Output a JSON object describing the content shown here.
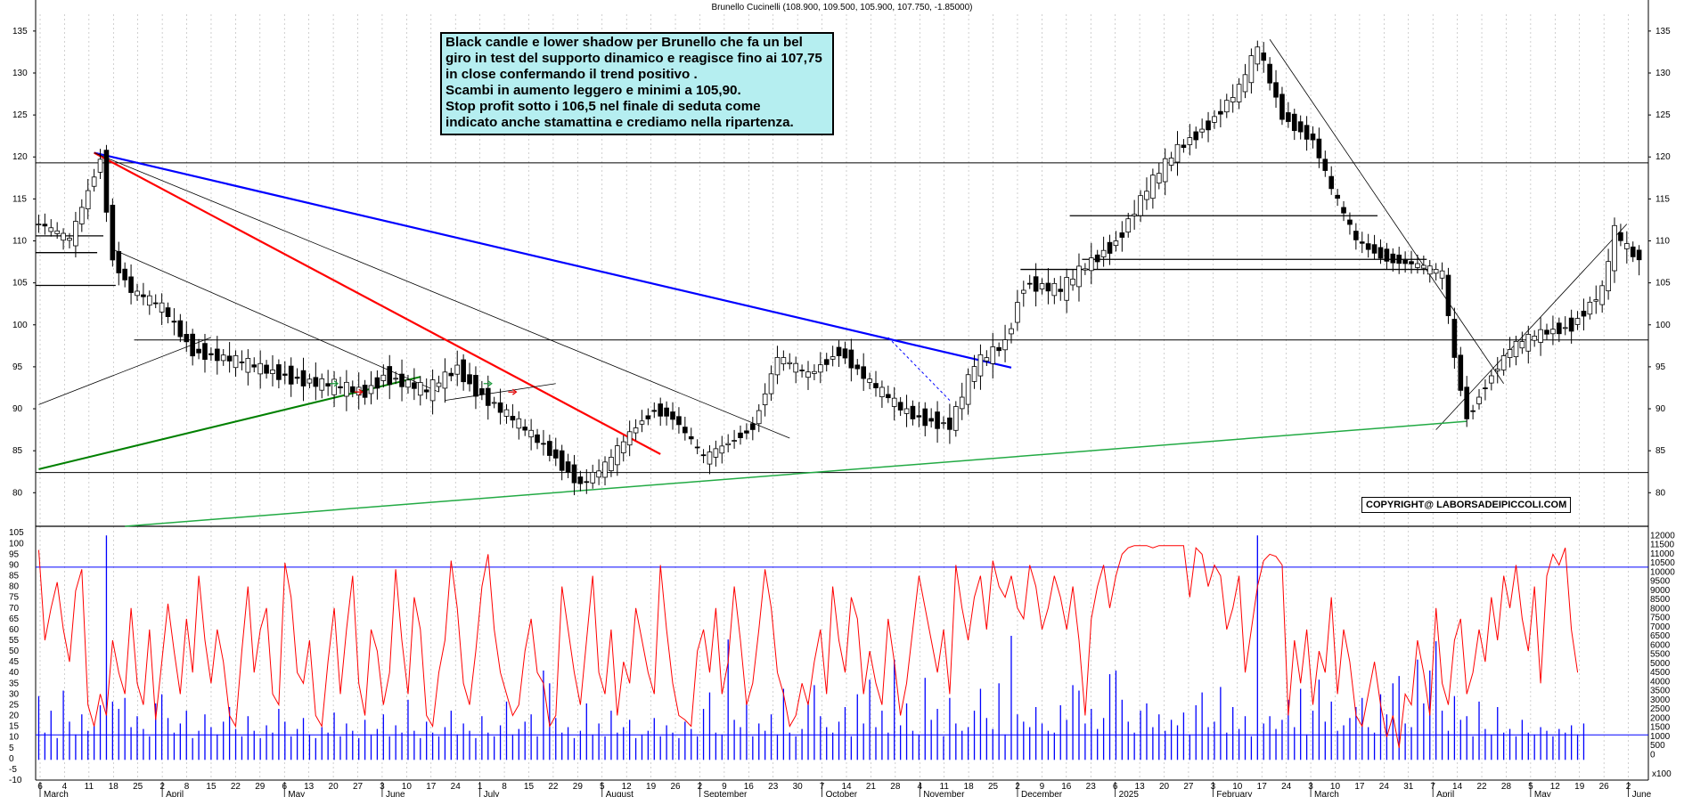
{
  "header": {
    "title": "Brunello Cucinelli (108.900, 109.500, 105.900, 107.750, -1.85000)"
  },
  "note": {
    "lines": [
      "Black candle e lower shadow per Brunello che fa un bel",
      "giro in test del supporto dinamico e reagisce fino ai 107,75",
      "in close confermando il trend positivo .",
      "Scambi in aumento leggero e minimi a 105,90.",
      "Stop profit sotto i 106,5 nel finale di seduta come",
      "indicato anche stamattina e crediamo nella ripartenza."
    ],
    "background": "#b5eef0"
  },
  "copyright": "COPYRIGHT@ LABORSADEIPICCOLI.COM",
  "colors": {
    "candle": "#000000",
    "oscillator": "#ff0000",
    "volume": "#0000ff",
    "trend_blue": "#0000ff",
    "trend_red": "#ff0000",
    "trend_green": "#008000",
    "support_green": "#22aa44",
    "grid": "#b0b0b0"
  },
  "x_axis": {
    "day_labels": [
      "6",
      "4",
      "11",
      "18",
      "25",
      "2",
      "8",
      "15",
      "22",
      "29",
      "6",
      "13",
      "20",
      "27",
      "3",
      "10",
      "17",
      "24",
      "1",
      "8",
      "15",
      "22",
      "29",
      "5",
      "12",
      "19",
      "26",
      "2",
      "9",
      "16",
      "23",
      "30",
      "7",
      "14",
      "21",
      "28",
      "4",
      "11",
      "18",
      "25",
      "2",
      "9",
      "16",
      "23",
      "6",
      "13",
      "20",
      "27",
      "3",
      "10",
      "17",
      "24",
      "3",
      "10",
      "17",
      "24",
      "31",
      "7",
      "14",
      "22",
      "28",
      "5",
      "12",
      "19",
      "26",
      "2"
    ],
    "month_labels": [
      "March",
      "April",
      "May",
      "June",
      "July",
      "August",
      "September",
      "October",
      "November",
      "December",
      "2025",
      "February",
      "March",
      "April",
      "May",
      "June"
    ]
  },
  "chart_data": [
    {
      "type": "candlestick",
      "title": "Brunello Cucinelli (108.900, 109.500, 105.900, 107.750, -1.85000)",
      "last_bar": {
        "open": 108.9,
        "high": 109.5,
        "low": 105.9,
        "close": 107.75,
        "change": -1.85
      },
      "ylim": [
        76,
        137
      ],
      "y_ticks": [
        80,
        85,
        90,
        95,
        100,
        105,
        110,
        115,
        120,
        125,
        130,
        135
      ],
      "close_path": [
        [
          0,
          112
        ],
        [
          5,
          110
        ],
        [
          10,
          120
        ],
        [
          12,
          108
        ],
        [
          15,
          104
        ],
        [
          20,
          102
        ],
        [
          25,
          97
        ],
        [
          30,
          96
        ],
        [
          35,
          95
        ],
        [
          45,
          93
        ],
        [
          53,
          92
        ],
        [
          56,
          94
        ],
        [
          63,
          92
        ],
        [
          68,
          95
        ],
        [
          70,
          93
        ],
        [
          73,
          91
        ],
        [
          78,
          88
        ],
        [
          83,
          85
        ],
        [
          88,
          81
        ],
        [
          92,
          83
        ],
        [
          97,
          88
        ],
        [
          100,
          90
        ],
        [
          103,
          89
        ],
        [
          108,
          84
        ],
        [
          112,
          86
        ],
        [
          116,
          88
        ],
        [
          120,
          96
        ],
        [
          125,
          94
        ],
        [
          130,
          97
        ],
        [
          135,
          93
        ],
        [
          140,
          90
        ],
        [
          143,
          89
        ],
        [
          148,
          88
        ],
        [
          152,
          95
        ],
        [
          157,
          98
        ],
        [
          160,
          105
        ],
        [
          166,
          104
        ],
        [
          170,
          107
        ],
        [
          175,
          110
        ],
        [
          180,
          116
        ],
        [
          185,
          121
        ],
        [
          190,
          124
        ],
        [
          195,
          128
        ],
        [
          198,
          133
        ],
        [
          202,
          125
        ],
        [
          207,
          122
        ],
        [
          210,
          116
        ],
        [
          214,
          110
        ],
        [
          219,
          108
        ],
        [
          224,
          107
        ],
        [
          228,
          106
        ],
        [
          230,
          96
        ],
        [
          232,
          89
        ],
        [
          235,
          93
        ],
        [
          239,
          97
        ],
        [
          244,
          99
        ],
        [
          249,
          100
        ],
        [
          254,
          104
        ],
        [
          256,
          111
        ],
        [
          258,
          109
        ],
        [
          260,
          107.75
        ]
      ],
      "horizontal_lines": [
        {
          "price": 119.3,
          "from": 0,
          "to": 262
        },
        {
          "price": 98.2,
          "from": 16,
          "to": 262
        },
        {
          "price": 82.4,
          "from": 0,
          "to": 262
        },
        {
          "price": 110.6,
          "from": 0,
          "to": 11
        },
        {
          "price": 108.6,
          "from": 0,
          "to": 10
        },
        {
          "price": 104.7,
          "from": 0,
          "to": 13
        },
        {
          "price": 113.0,
          "from": 168,
          "to": 218
        },
        {
          "price": 107.8,
          "from": 170,
          "to": 226
        },
        {
          "price": 106.6,
          "from": 160,
          "to": 227
        }
      ],
      "trendlines": [
        {
          "color": "blue",
          "width": 2.2,
          "points": [
            [
              9,
              120.5
            ],
            [
              158,
              94.9
            ]
          ]
        },
        {
          "color": "red",
          "width": 2.2,
          "points": [
            [
              9,
              120.5
            ],
            [
              101,
              84.6
            ]
          ]
        },
        {
          "color": "black",
          "width": 0.8,
          "points": [
            [
              9,
              120.5
            ],
            [
              122,
              86.5
            ]
          ]
        },
        {
          "color": "black",
          "width": 0.8,
          "points": [
            [
              12,
              109
            ],
            [
              65,
              92
            ]
          ]
        },
        {
          "color": "black",
          "width": 0.8,
          "points": [
            [
              0,
              90.5
            ],
            [
              28,
              98.5
            ]
          ]
        },
        {
          "color": "black",
          "width": 0.8,
          "points": [
            [
              66,
              91
            ],
            [
              84,
              93
            ]
          ]
        },
        {
          "color": "black",
          "width": 0.8,
          "points": [
            [
              200,
              134
            ],
            [
              238,
              93
            ]
          ]
        },
        {
          "color": "black",
          "width": 0.8,
          "points": [
            [
              227,
              87.5
            ],
            [
              258,
              112
            ]
          ]
        },
        {
          "color": "green",
          "width": 2.0,
          "points": [
            [
              0,
              82.8
            ],
            [
              62,
              93.8
            ]
          ]
        },
        {
          "color": "support",
          "width": 1.5,
          "points": [
            [
              14,
              76
            ],
            [
              232,
              88.5
            ]
          ]
        }
      ],
      "dotted_lines": [
        {
          "color": "blue",
          "points": [
            [
              138,
              98.5
            ],
            [
              148,
              91
            ]
          ]
        }
      ],
      "arrows": [
        {
          "color": "green",
          "bar": 48,
          "price": 93
        },
        {
          "color": "green",
          "bar": 73,
          "price": 93
        },
        {
          "color": "red",
          "bar": 52,
          "price": 92
        },
        {
          "color": "red",
          "bar": 77,
          "price": 92
        }
      ]
    },
    {
      "type": "line",
      "series": [
        {
          "color": "red",
          "axis": "left"
        }
      ],
      "ylim": [
        -10,
        108
      ],
      "y_ticks": [
        -10,
        -5,
        0,
        5,
        10,
        15,
        20,
        25,
        30,
        35,
        40,
        45,
        50,
        55,
        60,
        65,
        70,
        75,
        80,
        85,
        90,
        95,
        100,
        105
      ],
      "reference_lines": [
        89,
        11
      ],
      "values": [
        97,
        55,
        70,
        82,
        60,
        45,
        78,
        88,
        25,
        15,
        30,
        20,
        55,
        40,
        30,
        70,
        35,
        25,
        60,
        18,
        45,
        72,
        50,
        30,
        65,
        40,
        85,
        55,
        35,
        60,
        45,
        20,
        15,
        50,
        80,
        40,
        60,
        70,
        30,
        25,
        91,
        75,
        40,
        35,
        55,
        20,
        15,
        45,
        70,
        30,
        60,
        85,
        35,
        20,
        60,
        50,
        25,
        40,
        88,
        55,
        30,
        75,
        60,
        20,
        15,
        40,
        55,
        92,
        70,
        35,
        25,
        50,
        80,
        95,
        60,
        40,
        30,
        20,
        25,
        50,
        65,
        40,
        35,
        15,
        20,
        80,
        60,
        40,
        25,
        55,
        85,
        40,
        30,
        60,
        20,
        45,
        35,
        70,
        55,
        40,
        30,
        90,
        60,
        35,
        20,
        18,
        15,
        50,
        60,
        40,
        70,
        30,
        45,
        80,
        55,
        25,
        35,
        60,
        88,
        70,
        40,
        30,
        15,
        20,
        35,
        25,
        45,
        60,
        30,
        80,
        55,
        40,
        75,
        65,
        30,
        50,
        35,
        25,
        65,
        45,
        20,
        35,
        60,
        85,
        70,
        55,
        40,
        60,
        30,
        90,
        70,
        55,
        75,
        85,
        60,
        92,
        80,
        75,
        85,
        70,
        65,
        90,
        80,
        60,
        70,
        85,
        75,
        60,
        80,
        55,
        20,
        65,
        80,
        90,
        70,
        85,
        95,
        98,
        99,
        99,
        99,
        98,
        99,
        99,
        99,
        99,
        99,
        75,
        98,
        95,
        80,
        90,
        85,
        60,
        70,
        85,
        40,
        60,
        80,
        92,
        95,
        94,
        90,
        20,
        55,
        35,
        60,
        25,
        50,
        40,
        75,
        30,
        60,
        45,
        20,
        15,
        30,
        45,
        25,
        10,
        20,
        5,
        30,
        25,
        55,
        40,
        20,
        70,
        35,
        25,
        55,
        65,
        30,
        40,
        60,
        45,
        75,
        55,
        85,
        70,
        90,
        65,
        50,
        80,
        35,
        85,
        95,
        90,
        98,
        60,
        40
      ],
      "volume_axis": {
        "ylim": [
          -1400,
          12500
        ],
        "ticks": [
          0,
          500,
          1000,
          1500,
          2000,
          2500,
          3000,
          3500,
          4000,
          4500,
          5000,
          5500,
          6000,
          6500,
          7000,
          7500,
          8000,
          8500,
          9000,
          9500,
          10000,
          10500,
          11000,
          11500,
          12000
        ],
        "unit_label": "x100"
      }
    },
    {
      "type": "bar",
      "series": [
        {
          "color": "blue",
          "axis": "right"
        }
      ],
      "unit": "x100",
      "values": [
        3200,
        1200,
        2400,
        900,
        3500,
        1800,
        1100,
        2200,
        1300,
        1600,
        2700,
        12000,
        2900,
        2500,
        3100,
        1500,
        2100,
        1400,
        1000,
        2800,
        3300,
        2000,
        1200,
        1700,
        2400,
        900,
        1300,
        2200,
        1500,
        1100,
        1800,
        2600,
        1400,
        1000,
        2100,
        1300,
        900,
        1600,
        1200,
        2500,
        1800,
        1000,
        1400,
        2000,
        1100,
        900,
        1500,
        1200,
        2300,
        1000,
        1700,
        1300,
        900,
        1900,
        1100,
        1400,
        2200,
        1000,
        1600,
        1200,
        3000,
        1300,
        900,
        1800,
        1200,
        1000,
        1500,
        2400,
        1100,
        1700,
        1300,
        900,
        2100,
        1200,
        1000,
        1600,
        2900,
        1100,
        1400,
        1800,
        2200,
        1000,
        4600,
        3900,
        2000,
        1200,
        1500,
        900,
        1300,
        2800,
        1100,
        1700,
        1000,
        2400,
        1200,
        1500,
        1900,
        900,
        1100,
        1300,
        2000,
        1000,
        1600,
        1200,
        900,
        1800,
        1400,
        1000,
        2500,
        3400,
        1200,
        1100,
        6300,
        1900,
        1500,
        2800,
        1000,
        1700,
        1300,
        2200,
        1100,
        3600,
        1200,
        1000,
        1400,
        2900,
        3800,
        2100,
        1500,
        1200,
        1800,
        2600,
        1000,
        3300,
        1700,
        4100,
        1500,
        2400,
        1200,
        5200,
        1600,
        2800,
        1300,
        1100,
        4200,
        1900,
        2500,
        1000,
        3100,
        1700,
        1300,
        1500,
        2400,
        3600,
        2000,
        1400,
        3900,
        1100,
        6500,
        2200,
        1800,
        1500,
        2600,
        1700,
        1300,
        1200,
        2700,
        1900,
        3800,
        3500,
        1700,
        2500,
        1400,
        2000,
        4400,
        4600,
        3000,
        1800,
        1200,
        2400,
        2800,
        1500,
        2200,
        1300,
        1900,
        1600,
        2300,
        1100,
        2700,
        3400,
        1500,
        1800,
        3700,
        1200,
        2600,
        1400,
        2100,
        1000,
        12000,
        1700,
        2100,
        1400,
        1900,
        3000,
        1500,
        3600,
        1100,
        2400,
        4100,
        1800,
        2900,
        1300,
        1600,
        2000,
        2600,
        3100,
        1500,
        1200,
        3300,
        2200,
        3900,
        4300,
        1700,
        1500,
        5200,
        2800,
        4600,
        6200,
        2400,
        1300,
        3200,
        1900,
        2100,
        1000,
        2900,
        1400,
        1100,
        2600,
        1200,
        1400,
        1000,
        1900,
        1200,
        1100,
        1500,
        1300,
        1000,
        1400,
        1200,
        1600,
        1100,
        1700
      ]
    }
  ]
}
